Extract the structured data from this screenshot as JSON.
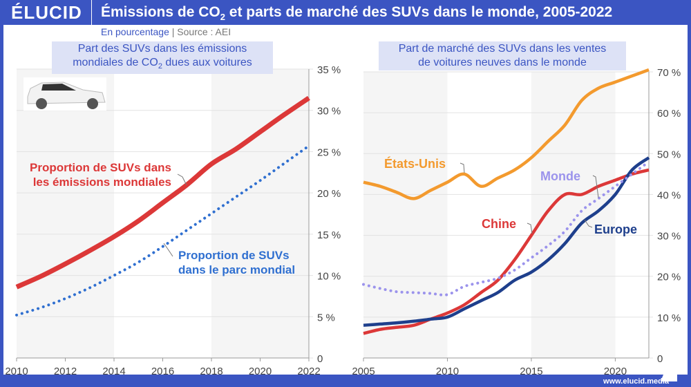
{
  "header": {
    "logo": "ÉLUCID",
    "title_a": "Émissions de CO",
    "title_sub": "2",
    "title_b": " et parts de marché des SUVs dans le monde, 2005-2022"
  },
  "subtitle": {
    "unit": "En pourcentage",
    "separator": "|",
    "source": "Source : AEI"
  },
  "footer": "www.elucid.media",
  "chart_data": [
    {
      "type": "line",
      "title_a": "Part des SUVs dans les émissions",
      "title_b": "mondiales de CO",
      "title_sub": "2",
      "title_c": " dues aux voitures",
      "x": [
        2010,
        2011,
        2012,
        2013,
        2014,
        2015,
        2016,
        2017,
        2018,
        2019,
        2020,
        2021,
        2022
      ],
      "xticks": [
        2010,
        2012,
        2014,
        2016,
        2018,
        2020,
        2022
      ],
      "ylim": [
        0,
        35
      ],
      "yticks": [
        0,
        5,
        10,
        15,
        20,
        25,
        30,
        35
      ],
      "ytick_labels": [
        "0",
        "5 %",
        "10 %",
        "15 %",
        "20 %",
        "25 %",
        "30 %",
        "35 %"
      ],
      "series": [
        {
          "name": "Proportion de SUVs dans les émissions mondiales",
          "name_lines": [
            "Proportion de SUVs dans",
            "les émissions mondiales"
          ],
          "color": "#dc3838",
          "style": "solid",
          "values": [
            8.6,
            9.9,
            11.4,
            13,
            14.7,
            16.6,
            18.8,
            21,
            23.5,
            25.3,
            27.4,
            29.5,
            31.5
          ]
        },
        {
          "name": "Proportion de SUVs dans le parc mondial",
          "name_lines": [
            "Proportion de SUVs",
            "dans le parc mondial"
          ],
          "color": "#2f6fd0",
          "style": "dotted",
          "values": [
            5.2,
            6.1,
            7.2,
            8.5,
            10,
            11.6,
            13.5,
            15.5,
            17.5,
            19.5,
            21.5,
            23.6,
            25.7
          ]
        }
      ]
    },
    {
      "type": "line",
      "title_a": "Part de marché des SUVs dans les ventes",
      "title_b": "de voitures neuves dans le monde",
      "x": [
        2005,
        2006,
        2007,
        2008,
        2009,
        2010,
        2011,
        2012,
        2013,
        2014,
        2015,
        2016,
        2017,
        2018,
        2019,
        2020,
        2021,
        2022
      ],
      "xticks": [
        2005,
        2010,
        2015,
        2020
      ],
      "ylim": [
        0,
        70
      ],
      "yticks": [
        0,
        10,
        20,
        30,
        40,
        50,
        60,
        70
      ],
      "ytick_labels": [
        "0",
        "10 %",
        "20 %",
        "30 %",
        "40 %",
        "50 %",
        "60 %",
        "70 %"
      ],
      "series": [
        {
          "name": "États-Unis",
          "color": "#f39a2e",
          "style": "solid",
          "values": [
            43,
            42,
            40.5,
            39,
            41,
            43,
            45,
            42,
            44,
            46,
            49,
            53,
            57,
            63,
            66,
            67.5,
            69,
            70.5
          ]
        },
        {
          "name": "Chine",
          "color": "#dc3838",
          "style": "solid",
          "values": [
            6,
            7,
            7.5,
            8,
            9.5,
            11,
            13,
            16,
            19,
            24,
            30,
            36,
            40,
            40,
            42,
            43.5,
            45,
            46
          ]
        },
        {
          "name": "Europe",
          "color": "#1e3f8c",
          "style": "solid",
          "values": [
            8,
            8.3,
            8.6,
            9,
            9.5,
            10,
            12,
            14,
            16,
            19,
            21,
            24,
            28,
            33,
            36,
            40,
            46,
            49
          ]
        },
        {
          "name": "Monde",
          "color": "#9b93ec",
          "style": "dotted",
          "values": [
            18,
            17,
            16.2,
            16,
            15.8,
            15.5,
            17.5,
            18.5,
            19.5,
            21.5,
            24.5,
            27.5,
            31,
            36,
            39,
            42,
            45,
            48
          ]
        }
      ]
    }
  ]
}
